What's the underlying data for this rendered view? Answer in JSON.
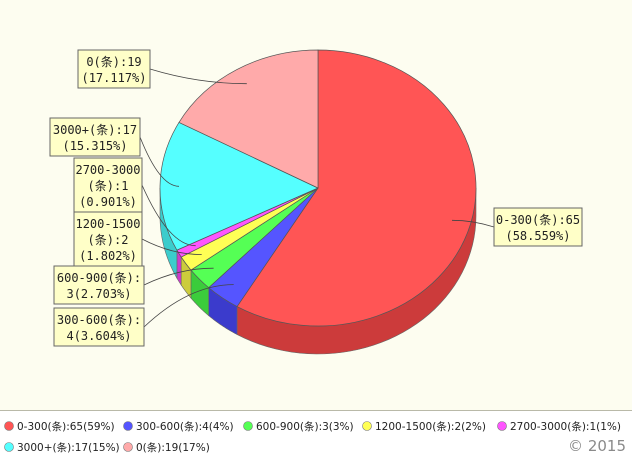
{
  "chart_data": {
    "type": "pie",
    "title": "",
    "categories": [
      "0-300(条)",
      "300-600(条)",
      "600-900(条)",
      "1200-1500(条)",
      "2700-3000(条)",
      "3000+(条)",
      "0(条)"
    ],
    "values": [
      65,
      4,
      3,
      2,
      1,
      17,
      19
    ],
    "percents_label": [
      "58.559%",
      "3.604%",
      "2.703%",
      "1.802%",
      "0.901%",
      "15.315%",
      "17.117%"
    ],
    "legend_percents": [
      "59%",
      "4%",
      "3%",
      "2%",
      "1%",
      "15%",
      "17%"
    ],
    "colors": [
      "#ff5555",
      "#5555ff",
      "#55ff55",
      "#ffff55",
      "#ff55ff",
      "#55ffff",
      "#ffaaaa"
    ],
    "side_colors": [
      "#cc3b3b",
      "#3b3bcc",
      "#3bcc3b",
      "#cccc3b",
      "#cc3bcc",
      "#3bcccc",
      "#cc8888"
    ],
    "callouts": [
      [
        "0-300(条):65",
        "(58.559%)"
      ],
      [
        "300-600(条):",
        "4(3.604%)"
      ],
      [
        "600-900(条):",
        "3(2.703%)"
      ],
      [
        "1200-1500",
        "(条):2",
        "(1.802%)"
      ],
      [
        "2700-3000",
        "(条):1",
        "(0.901%)"
      ],
      [
        "3000+(条):17",
        "(15.315%)"
      ],
      [
        "0(条):19",
        "(17.117%)"
      ]
    ],
    "legend_position": "bottom"
  },
  "copyright": "© 2015"
}
